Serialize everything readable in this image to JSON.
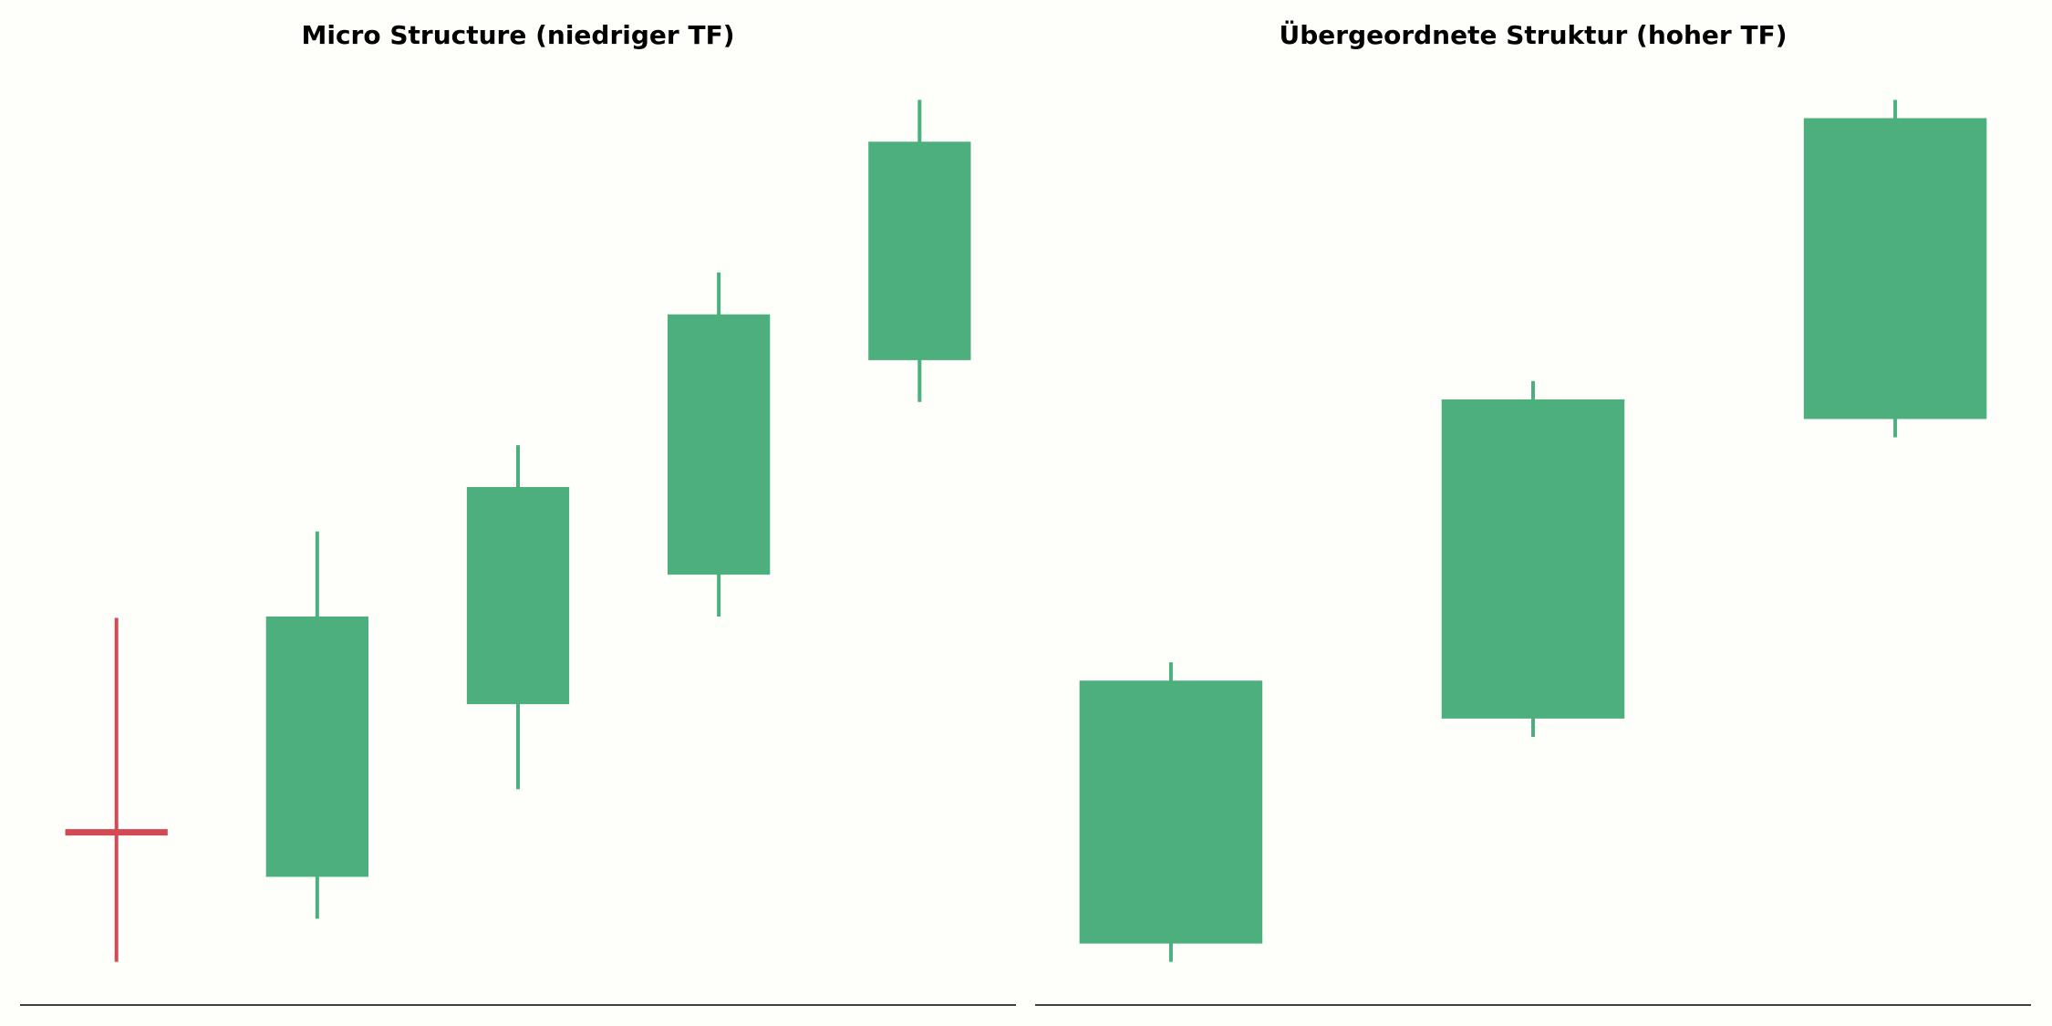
{
  "chart_data": [
    {
      "type": "candlestick",
      "title": "Micro Structure (niedriger TF)",
      "open": [
        13.2,
        9.8,
        23.0,
        32.9,
        49.3
      ],
      "high": [
        29.6,
        36.2,
        42.8,
        56.0,
        69.2
      ],
      "low": [
        3.3,
        6.6,
        16.5,
        29.7,
        46.1
      ],
      "close": [
        13.2,
        29.7,
        39.6,
        52.8,
        66.0
      ],
      "up_color": "#4caf7d",
      "down_color": "#d14a55",
      "ylim": [
        0,
        70
      ]
    },
    {
      "type": "candlestick",
      "title": "Übergeordnete Struktur (hoher TF)",
      "open": [
        4.7,
        21.9,
        44.8
      ],
      "high": [
        26.2,
        47.7,
        69.2
      ],
      "low": [
        3.3,
        20.5,
        43.4
      ],
      "close": [
        24.8,
        46.3,
        67.8
      ],
      "up_color": "#4caf7d",
      "down_color": "#d14a55",
      "ylim": [
        0,
        70
      ]
    }
  ]
}
